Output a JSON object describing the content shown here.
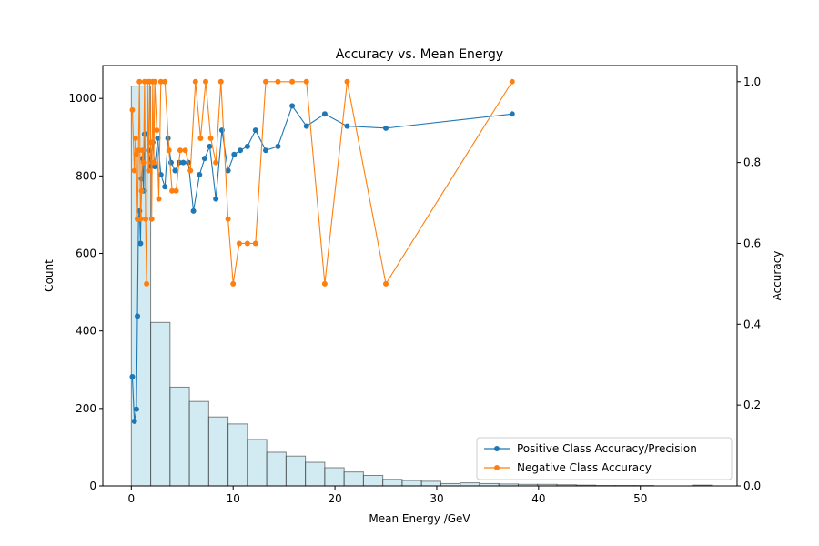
{
  "chart_data": {
    "type": "bar+line",
    "title": "Accuracy vs. Mean Energy",
    "xlabel": "Mean Energy /GeV",
    "ylabel_left": "Count",
    "ylabel_right": "Accuracy",
    "xlim": [
      -2.8,
      59.5
    ],
    "ylim_left": [
      0,
      1085
    ],
    "ylim_right": [
      0,
      1.04
    ],
    "xticks": [
      0,
      10,
      20,
      30,
      40,
      50
    ],
    "yticks_left": [
      0,
      200,
      400,
      600,
      800,
      1000
    ],
    "yticks_right": [
      0.0,
      0.2,
      0.4,
      0.6,
      0.8,
      1.0
    ],
    "legend_position": "lower-right",
    "grid": false,
    "histogram": {
      "name": "Count",
      "color": "#add8e6",
      "bin_width": 1.9,
      "bins_start": [
        0,
        1.9,
        3.8,
        5.7,
        7.6,
        9.5,
        11.4,
        13.3,
        15.2,
        17.1,
        19.0,
        20.9,
        22.8,
        24.7,
        26.6,
        28.5,
        30.4,
        32.3,
        34.2,
        36.1,
        38.0,
        39.9,
        41.8,
        43.7,
        45.6,
        47.5,
        49.4,
        51.3,
        53.2,
        55.1
      ],
      "counts": [
        1032,
        422,
        255,
        218,
        178,
        160,
        120,
        87,
        77,
        61,
        47,
        36,
        27,
        17,
        14,
        12,
        6,
        8,
        6,
        5,
        4,
        4,
        3,
        2,
        1,
        1,
        1,
        0,
        0,
        2
      ]
    },
    "series": [
      {
        "name": "Positive Class Accuracy/Precision",
        "color": "#1f77b4",
        "x": [
          0.1,
          0.3,
          0.5,
          0.6,
          0.7,
          0.8,
          0.9,
          1.0,
          1.1,
          1.2,
          1.3,
          1.5,
          1.7,
          1.9,
          2.1,
          2.3,
          2.6,
          2.9,
          3.3,
          3.6,
          3.9,
          4.3,
          4.7,
          5.1,
          5.6,
          6.1,
          6.7,
          7.2,
          7.7,
          8.3,
          8.9,
          9.5,
          10.1,
          10.7,
          11.4,
          12.2,
          13.2,
          14.4,
          15.8,
          17.2,
          19.0,
          21.2,
          25.0,
          37.4
        ],
        "y": [
          0.27,
          0.16,
          0.19,
          0.42,
          0.66,
          0.68,
          0.6,
          0.76,
          0.81,
          0.73,
          0.87,
          0.87,
          0.83,
          0.79,
          0.85,
          0.79,
          0.86,
          0.77,
          0.74,
          0.86,
          0.8,
          0.78,
          0.8,
          0.8,
          0.8,
          0.68,
          0.77,
          0.81,
          0.84,
          0.71,
          0.88,
          0.78,
          0.82,
          0.83,
          0.84,
          0.88,
          0.83,
          0.84,
          0.94,
          0.89,
          0.92,
          0.89,
          0.885,
          0.92
        ]
      },
      {
        "name": "Negative Class Accuracy",
        "color": "#ff7f0e",
        "x": [
          0.1,
          0.3,
          0.4,
          0.5,
          0.6,
          0.7,
          0.8,
          0.9,
          1.0,
          1.1,
          1.2,
          1.3,
          1.4,
          1.5,
          1.6,
          1.7,
          1.8,
          1.9,
          2.0,
          2.1,
          2.2,
          2.3,
          2.5,
          2.7,
          2.9,
          3.3,
          3.7,
          4.0,
          4.4,
          4.8,
          5.3,
          5.8,
          6.3,
          6.8,
          7.3,
          7.8,
          8.3,
          8.8,
          9.5,
          10.0,
          10.6,
          11.4,
          12.2,
          13.2,
          14.4,
          15.8,
          17.2,
          19.0,
          21.2,
          25.0,
          37.4
        ],
        "y": [
          0.93,
          0.78,
          0.86,
          0.82,
          0.66,
          0.83,
          1.0,
          0.66,
          0.73,
          0.83,
          0.8,
          1.0,
          0.66,
          0.5,
          1.0,
          0.78,
          1.0,
          0.85,
          0.66,
          1.0,
          0.8,
          1.0,
          0.88,
          0.71,
          1.0,
          1.0,
          0.83,
          0.73,
          0.73,
          0.83,
          0.83,
          0.78,
          1.0,
          0.86,
          1.0,
          0.86,
          0.8,
          1.0,
          0.66,
          0.5,
          0.6,
          0.6,
          0.6,
          1.0,
          1.0,
          1.0,
          1.0,
          0.5,
          1.0,
          0.5,
          1.0
        ]
      }
    ]
  }
}
